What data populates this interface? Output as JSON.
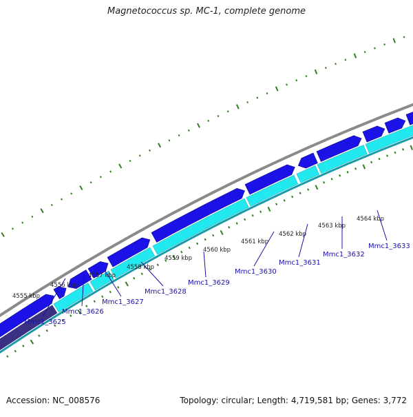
{
  "title": "Magnetococcus sp. MC-1, complete genome",
  "footer": {
    "accession": "Accession: NC_008576",
    "summary": "Topology: circular; Length: 4,719,581 bp; Genes: 3,772"
  },
  "colors": {
    "gene_forward": "#1a12e6",
    "gene_reverse": "#22e8f0",
    "rna_dark": "#3b3184",
    "backbone": "#8a8a8a",
    "gc_ticks": "#2e7d1e",
    "label_blue": "#1a10a8",
    "tick_mark": "#2e7d1e"
  },
  "scale_labels": [
    "4555 kbp",
    "4556 kbp",
    "4557 kbp",
    "4558 kbp",
    "4559 kbp",
    "4560 kbp",
    "4561 kbp",
    "4562 kbp",
    "4563 kbp",
    "4564 kbp"
  ],
  "genes": [
    {
      "name": "Mmc1_3625"
    },
    {
      "name": "Mmc1_3626"
    },
    {
      "name": "Mmc1_3627"
    },
    {
      "name": "Mmc1_3628"
    },
    {
      "name": "Mmc1_3629"
    },
    {
      "name": "Mmc1_3630"
    },
    {
      "name": "Mmc1_3631"
    },
    {
      "name": "Mmc1_3632"
    },
    {
      "name": "Mmc1_3633"
    }
  ]
}
